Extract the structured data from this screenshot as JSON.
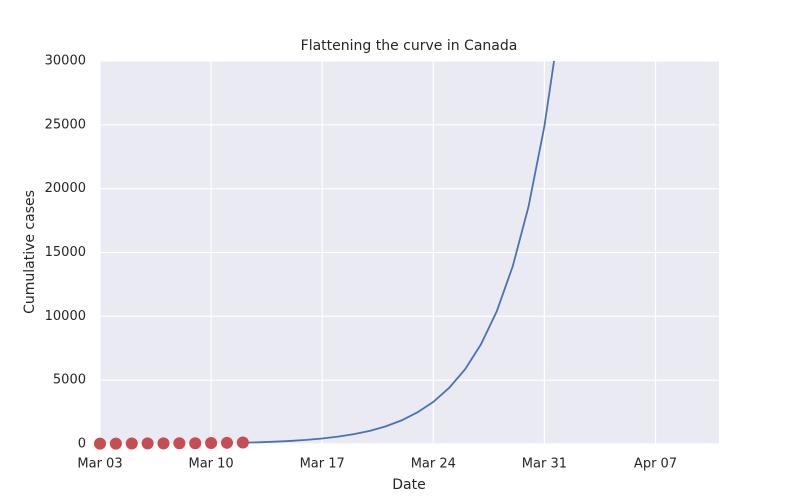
{
  "chart_data": {
    "type": "line",
    "title": "Flattening the curve in Canada",
    "x_label": "Date",
    "y_label": "Cumulative cases",
    "xlim": [
      "Mar 03",
      "Apr 11"
    ],
    "xticks": [
      "Mar 03",
      "Mar 10",
      "Mar 17",
      "Mar 24",
      "Mar 31",
      "Apr 07"
    ],
    "ylim": [
      0,
      30000
    ],
    "yticks": [
      0,
      5000,
      10000,
      15000,
      20000,
      25000,
      30000
    ],
    "grid": true,
    "background": "#eaeaf2",
    "series": [
      {
        "type": "line",
        "color": "#4c72b0",
        "x": [
          "Mar 12",
          "Mar 13",
          "Mar 14",
          "Mar 15",
          "Mar 16",
          "Mar 17",
          "Mar 18",
          "Mar 19",
          "Mar 20",
          "Mar 21",
          "Mar 22",
          "Mar 23",
          "Mar 24",
          "Mar 25",
          "Mar 26",
          "Mar 27",
          "Mar 28",
          "Mar 29",
          "Mar 30",
          "Mar 31",
          "Apr 01"
        ],
        "values": [
          100,
          134,
          180,
          240,
          320,
          430,
          575,
          770,
          1030,
          1380,
          1850,
          2480,
          3300,
          4400,
          5850,
          7800,
          10400,
          13900,
          18600,
          24900,
          33300
        ]
      },
      {
        "type": "scatter",
        "color": "#c44e52",
        "x": [
          "Mar 03",
          "Mar 04",
          "Mar 05",
          "Mar 06",
          "Mar 07",
          "Mar 08",
          "Mar 09",
          "Mar 10",
          "Mar 11",
          "Mar 12"
        ],
        "values": [
          30,
          33,
          37,
          46,
          51,
          57,
          62,
          77,
          93,
          117
        ]
      }
    ]
  }
}
